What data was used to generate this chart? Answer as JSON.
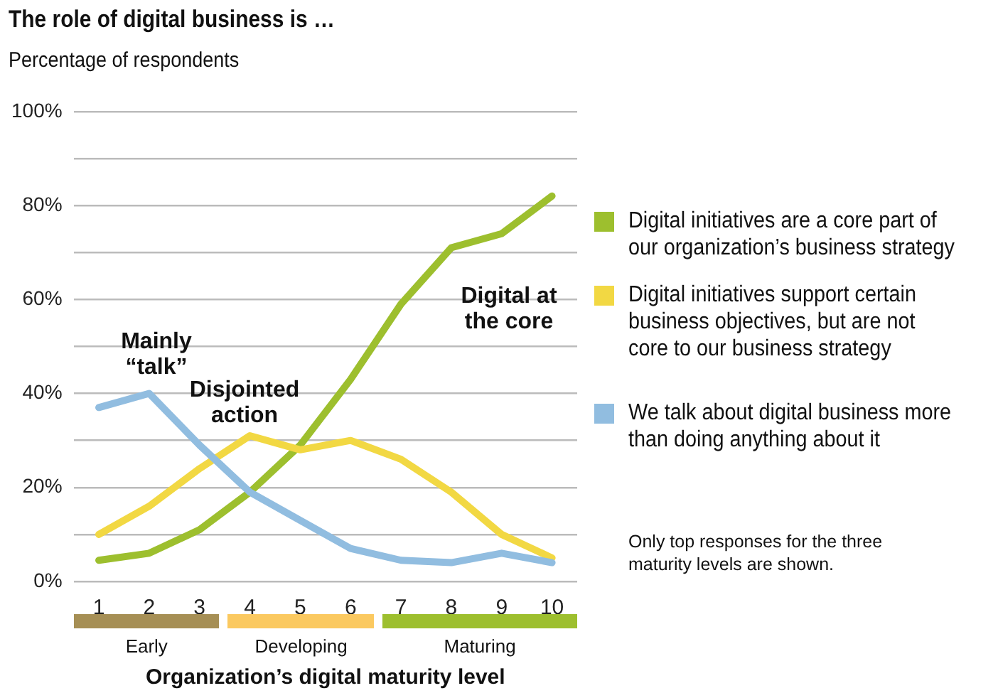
{
  "chart_data": {
    "type": "line",
    "title": "The role of digital business is …",
    "ylabel": "Percentage of respondents",
    "xlabel": "Organization’s digital maturity level",
    "categories": [
      "1",
      "2",
      "3",
      "4",
      "5",
      "6",
      "7",
      "8",
      "9",
      "10"
    ],
    "series": [
      {
        "name": "Digital initiatives are a core part of our organization’s business strategy",
        "color": "#9dbf2e",
        "values": [
          4.5,
          6,
          11,
          19,
          29,
          43,
          59,
          71,
          74,
          82
        ]
      },
      {
        "name": "Digital initiatives support certain business objectives, but are not core to our business strategy",
        "color": "#f2d843",
        "values": [
          10,
          16,
          24,
          31,
          28,
          30,
          26,
          19,
          10,
          5
        ]
      },
      {
        "name": "We talk about digital business more than doing anything about it",
        "color": "#91bde0",
        "values": [
          37,
          40,
          29,
          19,
          13,
          7,
          4.5,
          4,
          6,
          4
        ]
      }
    ],
    "ylim": [
      0,
      100
    ],
    "yticks": [
      {
        "value": 0,
        "label": "0%"
      },
      {
        "value": 10,
        "label": null
      },
      {
        "value": 20,
        "label": "20%"
      },
      {
        "value": 30,
        "label": null
      },
      {
        "value": 40,
        "label": "40%"
      },
      {
        "value": 50,
        "label": null
      },
      {
        "value": 60,
        "label": "60%"
      },
      {
        "value": 70,
        "label": null
      },
      {
        "value": 80,
        "label": "80%"
      },
      {
        "value": 90,
        "label": null
      },
      {
        "value": 100,
        "label": "100%"
      }
    ],
    "grid": "y",
    "legend": "right",
    "marker": "none",
    "line_style": "solid",
    "annotations": [
      "Mainly “talk”",
      "Disjointed action",
      "Digital at the core",
      "Early",
      "Developing",
      "Maturing",
      "Only top responses for the three maturity levels are shown."
    ]
  }
}
